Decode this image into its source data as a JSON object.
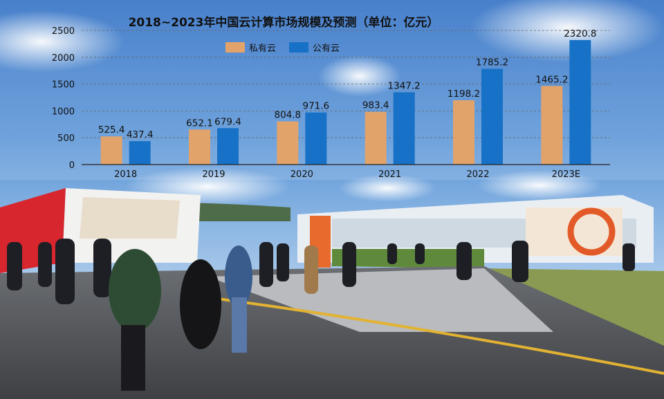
{
  "chart_data": {
    "type": "bar",
    "title": "2018~2023年中国云计算市场规模及预测（单位：亿元）",
    "categories": [
      "2018",
      "2019",
      "2020",
      "2021",
      "2022",
      "2023E"
    ],
    "series": [
      {
        "name": "私有云",
        "values": [
          525.4,
          652.1,
          804.8,
          983.4,
          1198.2,
          1465.2
        ]
      },
      {
        "name": "公有云",
        "values": [
          437.4,
          679.4,
          971.6,
          1347.2,
          1785.2,
          2320.8
        ]
      }
    ],
    "yticks": [
      0,
      500,
      1000,
      1500,
      2000,
      2500
    ],
    "ylim": [
      0,
      2500
    ],
    "grid": true,
    "legend": "top-center",
    "colors": {
      "private": "#E2A36B",
      "public": "#1772C7"
    }
  }
}
